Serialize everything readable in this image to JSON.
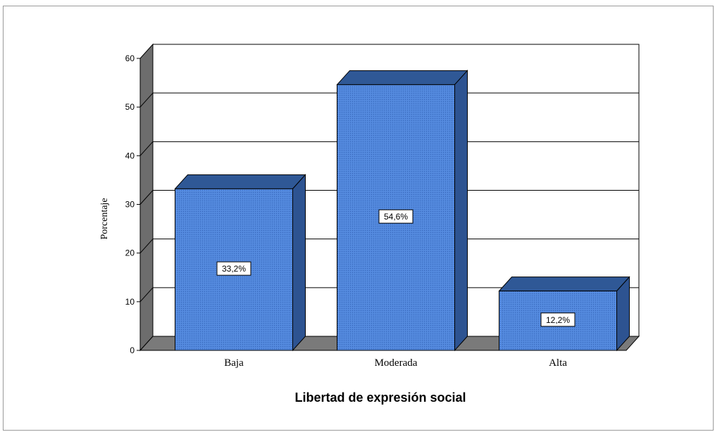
{
  "chart_data": {
    "type": "bar",
    "style": "3d",
    "categories": [
      "Baja",
      "Moderada",
      "Alta"
    ],
    "values": [
      33.2,
      54.6,
      12.2
    ],
    "data_labels": [
      "33,2%",
      "54,6%",
      "12,2%"
    ],
    "xlabel": "Libertad de expresión social",
    "ylabel": "Porcentaje",
    "ylim": [
      0,
      60
    ],
    "yticks": [
      0,
      10,
      20,
      30,
      40,
      50,
      60
    ],
    "grid": true,
    "colors": {
      "bar_front": "#4f86dc",
      "bar_top": "#2f5896",
      "bar_side": "#2d5391",
      "left_wall": "#6d6d6d",
      "floor": "#7a7a7a",
      "gridline": "#000000"
    }
  }
}
